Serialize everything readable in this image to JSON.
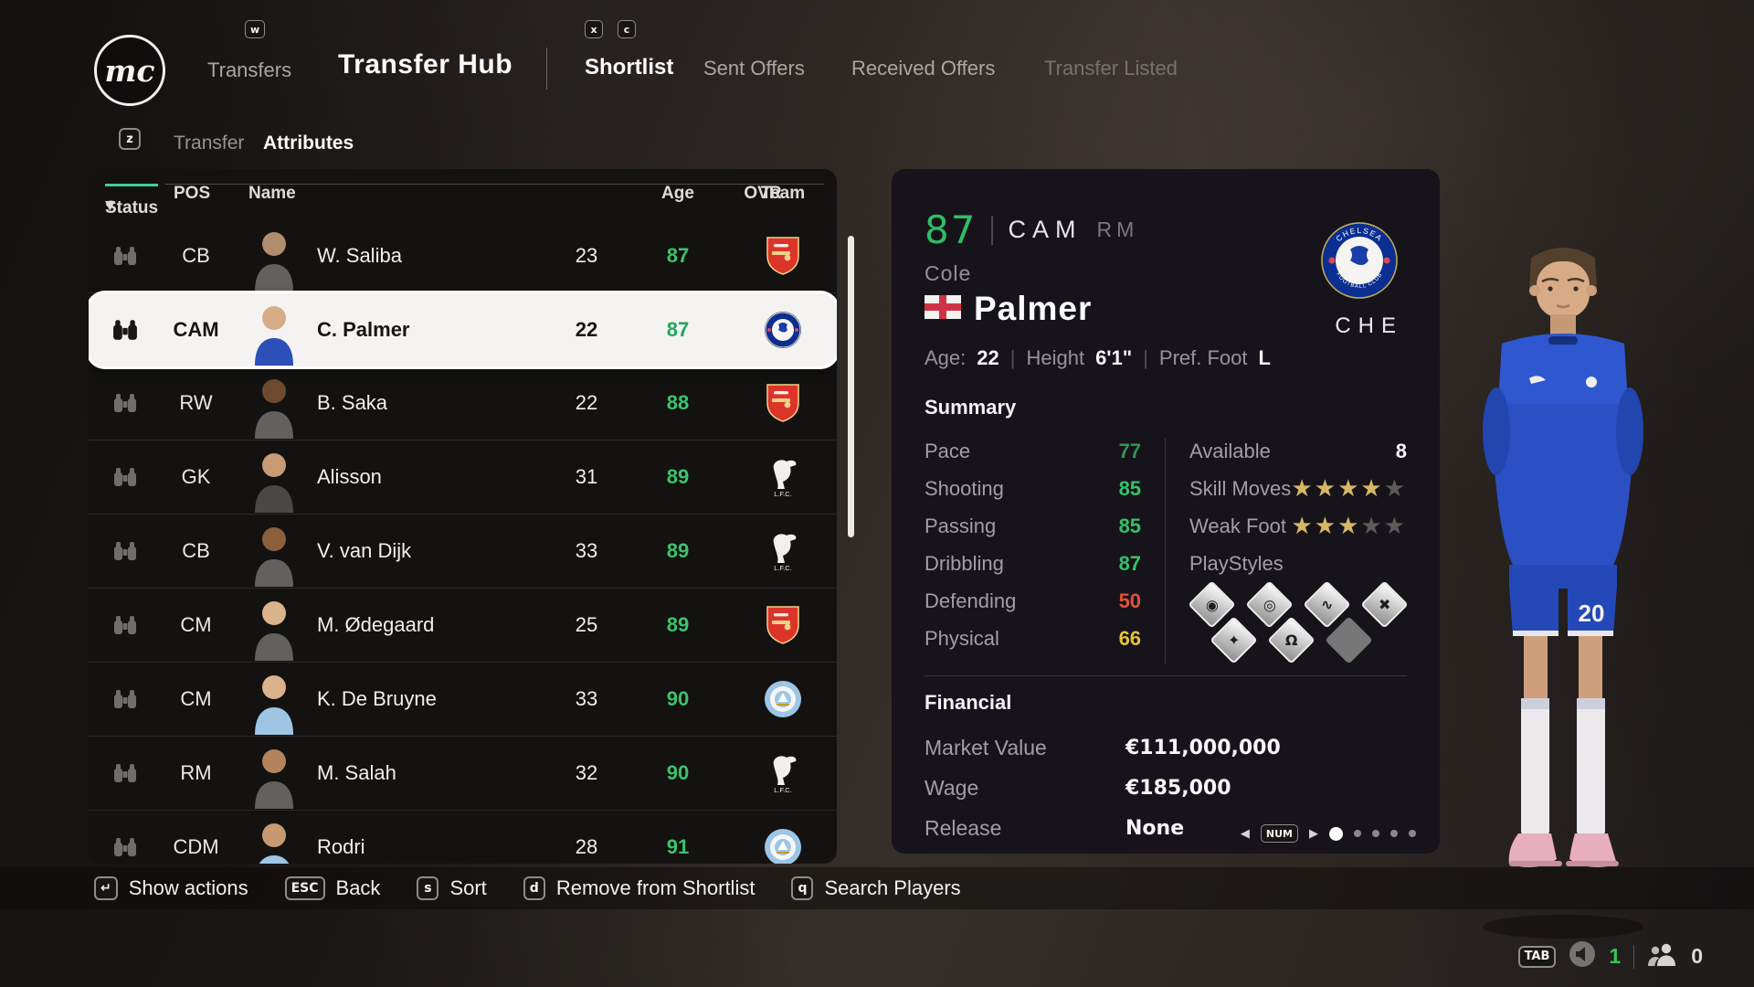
{
  "nav": {
    "logo_text": "mc",
    "key_w": "w",
    "transfers_label": "Transfers",
    "title": "Transfer Hub",
    "key_x": "x",
    "key_c": "c",
    "tabs": [
      {
        "label": "Shortlist",
        "active": true
      },
      {
        "label": "Sent Offers",
        "active": false
      },
      {
        "label": "Received Offers",
        "active": false
      },
      {
        "label": "Transfer Listed",
        "active": false
      }
    ]
  },
  "subnav": {
    "key_z": "z",
    "transfer_label": "Transfer",
    "attributes_label": "Attributes"
  },
  "table": {
    "headers": {
      "status": "Status",
      "sort_icon": "▼",
      "pos": "POS",
      "name": "Name",
      "age": "Age",
      "ovr": "OVR",
      "team": "Team"
    },
    "players": [
      {
        "pos": "CB",
        "name": "W. Saliba",
        "age": "23",
        "ovr": "87",
        "team": "Arsenal",
        "selected": false
      },
      {
        "pos": "CAM",
        "name": "C. Palmer",
        "age": "22",
        "ovr": "87",
        "team": "Chelsea",
        "selected": true
      },
      {
        "pos": "RW",
        "name": "B. Saka",
        "age": "22",
        "ovr": "88",
        "team": "Arsenal",
        "selected": false
      },
      {
        "pos": "GK",
        "name": "Alisson",
        "age": "31",
        "ovr": "89",
        "team": "Liverpool",
        "selected": false
      },
      {
        "pos": "CB",
        "name": "V. van Dijk",
        "age": "33",
        "ovr": "89",
        "team": "Liverpool",
        "selected": false
      },
      {
        "pos": "CM",
        "name": "M. Ødegaard",
        "age": "25",
        "ovr": "89",
        "team": "Arsenal",
        "selected": false
      },
      {
        "pos": "CM",
        "name": "K. De Bruyne",
        "age": "33",
        "ovr": "90",
        "team": "Manchester City",
        "selected": false
      },
      {
        "pos": "RM",
        "name": "M. Salah",
        "age": "32",
        "ovr": "90",
        "team": "Liverpool",
        "selected": false
      },
      {
        "pos": "CDM",
        "name": "Rodri",
        "age": "28",
        "ovr": "91",
        "team": "Manchester City",
        "selected": false
      }
    ]
  },
  "detail": {
    "ovr": "87",
    "position": "CAM",
    "alt_position": "RM",
    "first_name": "Cole",
    "last_name": "Palmer",
    "bio": {
      "age_label": "Age:",
      "age": "22",
      "height_label": "Height",
      "height": "6'1\"",
      "foot_label": "Pref. Foot",
      "foot": "L",
      "separator": "|"
    },
    "club_code": "CHE",
    "club_name": "Chelsea",
    "summary": {
      "title": "Summary",
      "stats": [
        {
          "label": "Pace",
          "value": "77",
          "color": "#3b8f58"
        },
        {
          "label": "Shooting",
          "value": "85",
          "color": "#35c169"
        },
        {
          "label": "Passing",
          "value": "85",
          "color": "#35c169"
        },
        {
          "label": "Dribbling",
          "value": "87",
          "color": "#35c169"
        },
        {
          "label": "Defending",
          "value": "50",
          "color": "#e2503c"
        },
        {
          "label": "Physical",
          "value": "66",
          "color": "#e5c13d"
        }
      ],
      "available_label": "Available",
      "available": "8",
      "skill_moves_label": "Skill Moves",
      "skill_moves": 4,
      "weak_foot_label": "Weak Foot",
      "weak_foot": 3,
      "playstyles_label": "PlayStyles",
      "playstyles": [
        {
          "name": "ball-swirl-playstyle-icon",
          "glyph": "◉"
        },
        {
          "name": "pin-playstyle-icon",
          "glyph": "◎"
        },
        {
          "name": "curve-playstyle-icon",
          "glyph": "∿"
        },
        {
          "name": "crossed-path-playstyle-icon",
          "glyph": "✖"
        },
        {
          "name": "sparkle-playstyle-icon",
          "glyph": "✦"
        },
        {
          "name": "magnet-playstyle-icon",
          "glyph": "Ω"
        },
        {
          "name": "blank-playstyle-slot",
          "glyph": ""
        }
      ]
    },
    "financial": {
      "title": "Financial",
      "rows": [
        {
          "label": "Market Value",
          "value": "€111,000,000"
        },
        {
          "label": "Wage",
          "value": "€185,000"
        },
        {
          "label": "Release",
          "value": "None"
        }
      ]
    },
    "pager": {
      "prev": "◀",
      "key": "NUM",
      "next": "▶"
    }
  },
  "actions": [
    {
      "key": "↵",
      "label": "Show actions"
    },
    {
      "key": "ESC",
      "label": "Back"
    },
    {
      "key": "s",
      "label": "Sort"
    },
    {
      "key": "d",
      "label": "Remove from Shortlist"
    },
    {
      "key": "q",
      "label": "Search Players"
    }
  ],
  "status_bar": {
    "key": "TAB",
    "voice_count": "1",
    "online_count": "0"
  },
  "colors": {
    "ovr_green": "#3cc36c",
    "accent_teal_underline": "#3ecf9c",
    "star_gold": "#d7b765",
    "selected_row_bg": "#f4f3f1"
  }
}
